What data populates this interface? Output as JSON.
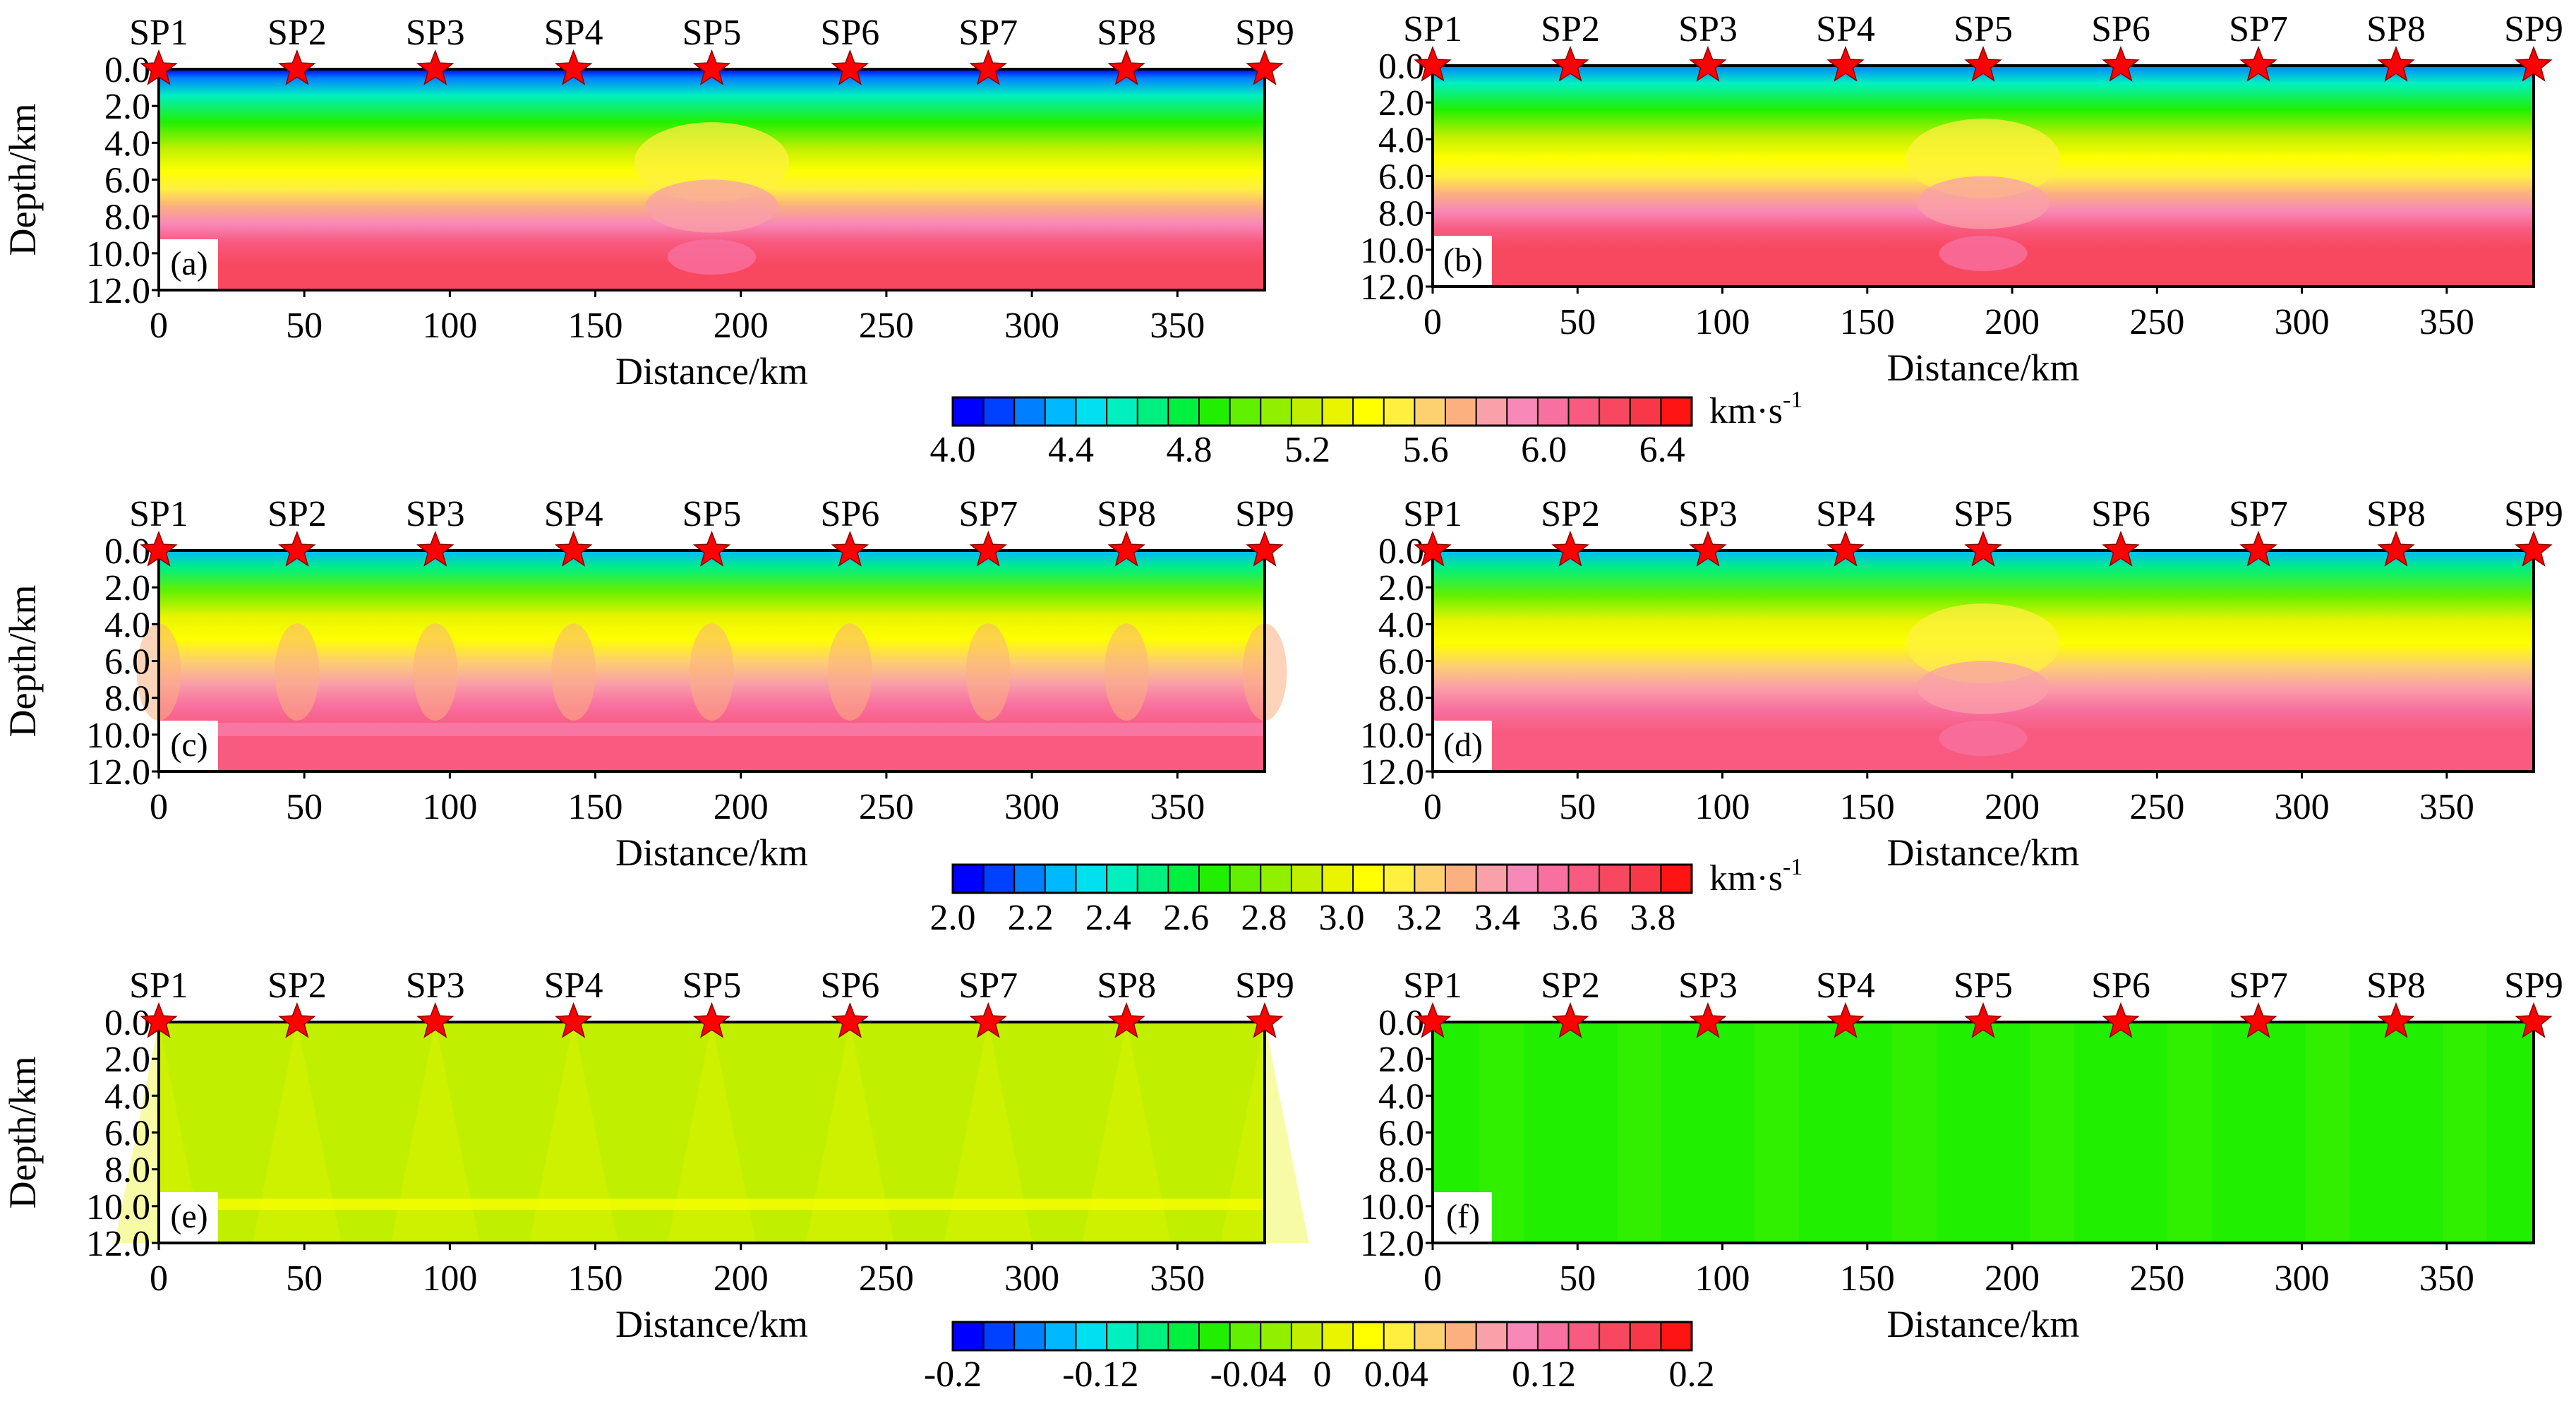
{
  "figure": {
    "shot_labels": [
      "SP1",
      "SP2",
      "SP3",
      "SP4",
      "SP5",
      "SP6",
      "SP7",
      "SP8",
      "SP9"
    ],
    "xlabel": "Distance/km",
    "ylabel": "Depth/km",
    "colors": {
      "star": "#ff0000",
      "star_stroke": "#8b0000"
    }
  },
  "chart_data": [
    {
      "type": "heatmap",
      "panel": "(a)",
      "field": "p_velocity",
      "xlim": [
        0,
        380
      ],
      "ylim": [
        12,
        0
      ],
      "x_ticks": [
        "0",
        "50",
        "100",
        "150",
        "200",
        "250",
        "300",
        "350"
      ],
      "y_ticks": [
        "0.0",
        "2.0",
        "4.0",
        "6.0",
        "8.0",
        "10.0",
        "12.0"
      ],
      "shot_x_km": [
        0,
        47.5,
        95,
        142.5,
        190,
        237.5,
        285,
        332.5,
        380
      ],
      "xlabel": "Distance/km",
      "ylabel": "Depth/km"
    },
    {
      "type": "heatmap",
      "panel": "(b)",
      "field": "p_velocity_smooth",
      "xlim": [
        0,
        380
      ],
      "ylim": [
        12,
        0
      ],
      "x_ticks": [
        "0",
        "50",
        "100",
        "150",
        "200",
        "250",
        "300",
        "350"
      ],
      "y_ticks": [
        "0.0",
        "2.0",
        "4.0",
        "6.0",
        "8.0",
        "10.0",
        "12.0"
      ],
      "shot_x_km": [
        0,
        47.5,
        95,
        142.5,
        190,
        237.5,
        285,
        332.5,
        380
      ],
      "xlabel": "Distance/km",
      "ylabel": ""
    },
    {
      "type": "heatmap",
      "panel": "(c)",
      "field": "s_velocity",
      "xlim": [
        0,
        380
      ],
      "ylim": [
        12,
        0
      ],
      "x_ticks": [
        "0",
        "50",
        "100",
        "150",
        "200",
        "250",
        "300",
        "350"
      ],
      "y_ticks": [
        "0.0",
        "2.0",
        "4.0",
        "6.0",
        "8.0",
        "10.0",
        "12.0"
      ],
      "shot_x_km": [
        0,
        47.5,
        95,
        142.5,
        190,
        237.5,
        285,
        332.5,
        380
      ],
      "xlabel": "Distance/km",
      "ylabel": "Depth/km"
    },
    {
      "type": "heatmap",
      "panel": "(d)",
      "field": "s_velocity_smooth",
      "xlim": [
        0,
        380
      ],
      "ylim": [
        12,
        0
      ],
      "x_ticks": [
        "0",
        "50",
        "100",
        "150",
        "200",
        "250",
        "300",
        "350"
      ],
      "y_ticks": [
        "0.0",
        "2.0",
        "4.0",
        "6.0",
        "8.0",
        "10.0",
        "12.0"
      ],
      "shot_x_km": [
        0,
        47.5,
        95,
        142.5,
        190,
        237.5,
        285,
        332.5,
        380
      ],
      "xlabel": "Distance/km",
      "ylabel": ""
    },
    {
      "type": "heatmap",
      "panel": "(e)",
      "field": "difference",
      "xlim": [
        0,
        380
      ],
      "ylim": [
        12,
        0
      ],
      "x_ticks": [
        "0",
        "50",
        "100",
        "150",
        "200",
        "250",
        "300",
        "350"
      ],
      "y_ticks": [
        "0.0",
        "2.0",
        "4.0",
        "6.0",
        "8.0",
        "10.0",
        "12.0"
      ],
      "shot_x_km": [
        0,
        47.5,
        95,
        142.5,
        190,
        237.5,
        285,
        332.5,
        380
      ],
      "xlabel": "Distance/km",
      "ylabel": "Depth/km"
    },
    {
      "type": "heatmap",
      "panel": "(f)",
      "field": "difference_smooth",
      "xlim": [
        0,
        380
      ],
      "ylim": [
        12,
        0
      ],
      "x_ticks": [
        "0",
        "50",
        "100",
        "150",
        "200",
        "250",
        "300",
        "350"
      ],
      "y_ticks": [
        "0.0",
        "2.0",
        "4.0",
        "6.0",
        "8.0",
        "10.0",
        "12.0"
      ],
      "shot_x_km": [
        0,
        47.5,
        95,
        142.5,
        190,
        237.5,
        285,
        332.5,
        380
      ],
      "xlabel": "Distance/km",
      "ylabel": ""
    }
  ],
  "colorbars": [
    {
      "name": "vp",
      "range": [
        4.0,
        6.5
      ],
      "tick_labels": [
        "4.0",
        "4.4",
        "4.8",
        "5.2",
        "5.6",
        "6.0",
        "6.4"
      ],
      "unit": "km·s",
      "unit_sup": "-1"
    },
    {
      "name": "vs",
      "range": [
        2.0,
        3.9
      ],
      "tick_labels": [
        "2.0",
        "2.2",
        "2.4",
        "2.6",
        "2.8",
        "3.0",
        "3.2",
        "3.4",
        "3.6",
        "3.8"
      ],
      "unit": "km·s",
      "unit_sup": "-1"
    },
    {
      "name": "diff",
      "range": [
        -0.2,
        0.2
      ],
      "tick_labels": [
        "-0.2",
        "-0.12",
        "-0.04",
        "0",
        "0.04",
        "0.12",
        "0.2"
      ],
      "unit": "",
      "unit_sup": ""
    }
  ],
  "palette": [
    "#0000ff",
    "#0040ff",
    "#0080ff",
    "#00b8ff",
    "#00e0f0",
    "#00f0c0",
    "#00f080",
    "#00f040",
    "#20f000",
    "#60f000",
    "#90f000",
    "#c0f000",
    "#e8f400",
    "#ffff00",
    "#fff040",
    "#fdd070",
    "#fbb080",
    "#f9a0a8",
    "#f888b8",
    "#f870a0",
    "#f85a80",
    "#f84860",
    "#f83848",
    "#ff1414"
  ]
}
